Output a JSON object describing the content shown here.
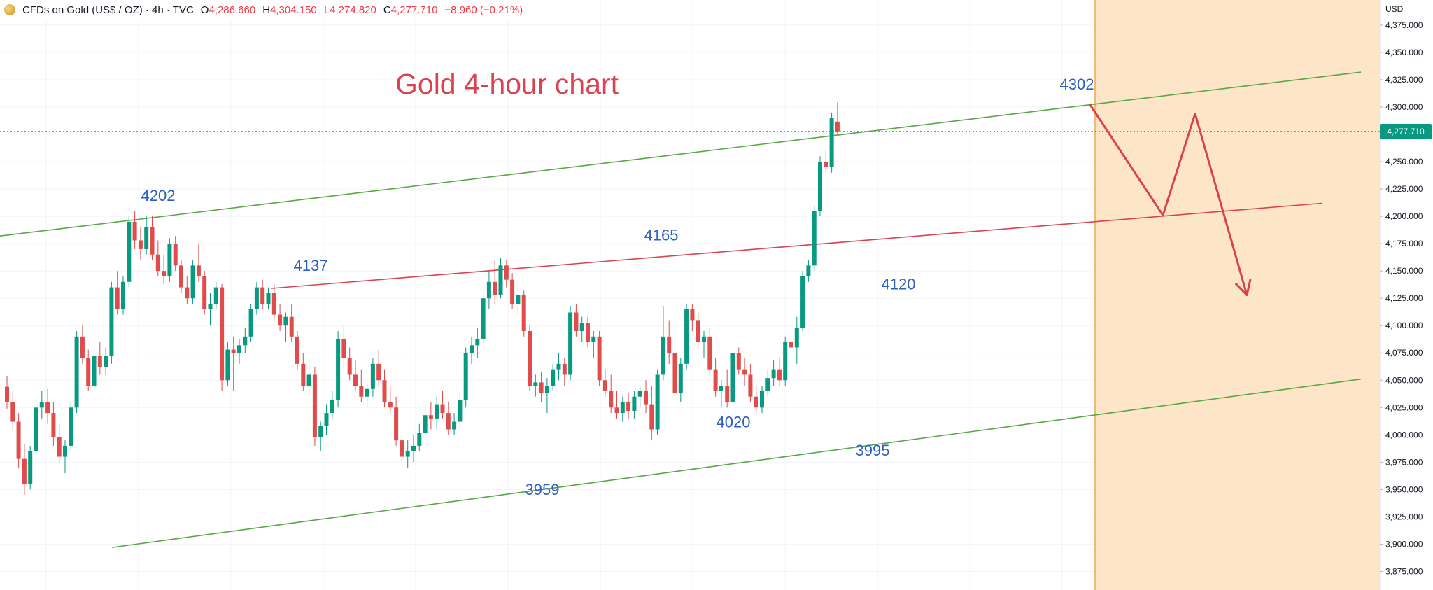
{
  "legend": {
    "symbol": "CFDs on Gold (US$ / OZ) · 4h · TVC",
    "open_label": "O",
    "open": "4,286.660",
    "high_label": "H",
    "high": "4,304.150",
    "low_label": "L",
    "low": "4,274.820",
    "close_label": "C",
    "close": "4,277.710",
    "change": "−8.960 (−0.21%)"
  },
  "currency": "USD",
  "current_price_label": "4,277.710",
  "colors": {
    "up": "#089981",
    "down": "#e04b4b",
    "green_channel": "#56a845",
    "red_line": "#d9434f",
    "annotation": "#2d5fc0",
    "title": "#d9434f",
    "projection_zone": "#fde5c8",
    "projection_border": "#f1a944"
  },
  "chart_data": {
    "type": "candlestick",
    "title": "Gold 4-hour chart",
    "ylabel": "USD",
    "ylim": [
      3858,
      4398
    ],
    "last_price": 4277.71,
    "y_ticks": [
      3875,
      3900,
      3925,
      3950,
      3975,
      4000,
      4025,
      4050,
      4075,
      4100,
      4125,
      4150,
      4175,
      4200,
      4225,
      4250,
      4275,
      4300,
      4325,
      4350,
      4375
    ],
    "y_tick_labels": [
      "3,875.000",
      "3,900.000",
      "3,925.000",
      "3,950.000",
      "3,975.000",
      "4,000.000",
      "4,025.000",
      "4,050.000",
      "4,075.000",
      "4,100.000",
      "4,125.000",
      "4,150.000",
      "4,175.000",
      "4,200.000",
      "4,225.000",
      "4,250.000",
      "4,275.000",
      "4,300.000",
      "4,325.000",
      "4,350.000",
      "4,375.000"
    ],
    "ohlc": [
      [
        4044,
        4054,
        4024,
        4030
      ],
      [
        4030,
        4040,
        4005,
        4012
      ],
      [
        4012,
        4020,
        3970,
        3978
      ],
      [
        3978,
        3992,
        3945,
        3955
      ],
      [
        3955,
        3990,
        3950,
        3985
      ],
      [
        3985,
        4035,
        3980,
        4025
      ],
      [
        4025,
        4040,
        4015,
        4030
      ],
      [
        4030,
        4042,
        4010,
        4020
      ],
      [
        4020,
        4030,
        3990,
        3998
      ],
      [
        3998,
        4010,
        3975,
        3980
      ],
      [
        3980,
        3995,
        3965,
        3990
      ],
      [
        3990,
        4030,
        3985,
        4025
      ],
      [
        4025,
        4095,
        4020,
        4090
      ],
      [
        4090,
        4100,
        4065,
        4070
      ],
      [
        4070,
        4078,
        4040,
        4045
      ],
      [
        4045,
        4078,
        4038,
        4072
      ],
      [
        4072,
        4085,
        4055,
        4062
      ],
      [
        4062,
        4080,
        4055,
        4072
      ],
      [
        4072,
        4140,
        4065,
        4135
      ],
      [
        4135,
        4150,
        4110,
        4115
      ],
      [
        4115,
        4145,
        4110,
        4140
      ],
      [
        4140,
        4200,
        4135,
        4195
      ],
      [
        4195,
        4205,
        4170,
        4178
      ],
      [
        4178,
        4190,
        4160,
        4170
      ],
      [
        4170,
        4200,
        4165,
        4190
      ],
      [
        4190,
        4200,
        4160,
        4165
      ],
      [
        4165,
        4178,
        4145,
        4150
      ],
      [
        4150,
        4165,
        4138,
        4145
      ],
      [
        4145,
        4180,
        4140,
        4175
      ],
      [
        4175,
        4182,
        4150,
        4155
      ],
      [
        4155,
        4160,
        4130,
        4135
      ],
      [
        4135,
        4145,
        4120,
        4125
      ],
      [
        4125,
        4160,
        4120,
        4155
      ],
      [
        4155,
        4175,
        4140,
        4145
      ],
      [
        4145,
        4150,
        4110,
        4115
      ],
      [
        4115,
        4130,
        4100,
        4120
      ],
      [
        4120,
        4140,
        4115,
        4135
      ],
      [
        4135,
        4138,
        4040,
        4050
      ],
      [
        4050,
        4085,
        4045,
        4078
      ],
      [
        4078,
        4090,
        4040,
        4075
      ],
      [
        4075,
        4088,
        4065,
        4082
      ],
      [
        4082,
        4098,
        4075,
        4090
      ],
      [
        4090,
        4120,
        4085,
        4115
      ],
      [
        4115,
        4140,
        4110,
        4135
      ],
      [
        4135,
        4142,
        4115,
        4120
      ],
      [
        4120,
        4135,
        4115,
        4130
      ],
      [
        4130,
        4138,
        4105,
        4110
      ],
      [
        4110,
        4120,
        4095,
        4100
      ],
      [
        4100,
        4112,
        4085,
        4108
      ],
      [
        4108,
        4120,
        4085,
        4090
      ],
      [
        4090,
        4095,
        4060,
        4065
      ],
      [
        4065,
        4075,
        4040,
        4045
      ],
      [
        4045,
        4070,
        4040,
        4055
      ],
      [
        4055,
        4062,
        3990,
        3998
      ],
      [
        3998,
        4012,
        3985,
        4008
      ],
      [
        4008,
        4028,
        4000,
        4020
      ],
      [
        4020,
        4040,
        4015,
        4032
      ],
      [
        4032,
        4095,
        4025,
        4088
      ],
      [
        4088,
        4100,
        4060,
        4070
      ],
      [
        4070,
        4080,
        4050,
        4055
      ],
      [
        4055,
        4068,
        4040,
        4045
      ],
      [
        4045,
        4060,
        4030,
        4035
      ],
      [
        4035,
        4048,
        4025,
        4042
      ],
      [
        4042,
        4070,
        4035,
        4065
      ],
      [
        4065,
        4078,
        4045,
        4050
      ],
      [
        4050,
        4060,
        4025,
        4030
      ],
      [
        4030,
        4045,
        4020,
        4025
      ],
      [
        4025,
        4035,
        3990,
        3995
      ],
      [
        3995,
        4000,
        3975,
        3980
      ],
      [
        3980,
        3995,
        3970,
        3985
      ],
      [
        3985,
        4000,
        3975,
        3990
      ],
      [
        3990,
        4010,
        3985,
        4002
      ],
      [
        4002,
        4025,
        3995,
        4018
      ],
      [
        4018,
        4030,
        4005,
        4015
      ],
      [
        4015,
        4035,
        4005,
        4028
      ],
      [
        4028,
        4040,
        4015,
        4020
      ],
      [
        4020,
        4030,
        4000,
        4005
      ],
      [
        4005,
        4020,
        4000,
        4012
      ],
      [
        4012,
        4038,
        4005,
        4032
      ],
      [
        4032,
        4080,
        4025,
        4075
      ],
      [
        4075,
        4090,
        4065,
        4082
      ],
      [
        4082,
        4098,
        4070,
        4088
      ],
      [
        4088,
        4130,
        4082,
        4125
      ],
      [
        4125,
        4150,
        4115,
        4140
      ],
      [
        4140,
        4160,
        4120,
        4128
      ],
      [
        4128,
        4162,
        4125,
        4155
      ],
      [
        4155,
        4160,
        4135,
        4142
      ],
      [
        4142,
        4148,
        4115,
        4120
      ],
      [
        4120,
        4140,
        4110,
        4128
      ],
      [
        4128,
        4132,
        4090,
        4095
      ],
      [
        4095,
        4100,
        4040,
        4045
      ],
      [
        4045,
        4055,
        4035,
        4048
      ],
      [
        4048,
        4058,
        4030,
        4038
      ],
      [
        4038,
        4052,
        4020,
        4045
      ],
      [
        4045,
        4065,
        4040,
        4060
      ],
      [
        4060,
        4075,
        4050,
        4065
      ],
      [
        4065,
        4070,
        4045,
        4055
      ],
      [
        4055,
        4118,
        4050,
        4112
      ],
      [
        4112,
        4120,
        4090,
        4095
      ],
      [
        4095,
        4108,
        4085,
        4102
      ],
      [
        4102,
        4108,
        4080,
        4085
      ],
      [
        4085,
        4095,
        4070,
        4090
      ],
      [
        4090,
        4095,
        4045,
        4050
      ],
      [
        4050,
        4060,
        4035,
        4040
      ],
      [
        4040,
        4055,
        4020,
        4025
      ],
      [
        4025,
        4040,
        4015,
        4020
      ],
      [
        4020,
        4035,
        4012,
        4030
      ],
      [
        4030,
        4038,
        4015,
        4022
      ],
      [
        4022,
        4040,
        4015,
        4035
      ],
      [
        4035,
        4045,
        4025,
        4040
      ],
      [
        4040,
        4050,
        4020,
        4028
      ],
      [
        4028,
        4045,
        3995,
        4005
      ],
      [
        4005,
        4060,
        4000,
        4055
      ],
      [
        4055,
        4118,
        4050,
        4090
      ],
      [
        4090,
        4105,
        4065,
        4075
      ],
      [
        4075,
        4090,
        4035,
        4038
      ],
      [
        4038,
        4070,
        4030,
        4065
      ],
      [
        4065,
        4120,
        4060,
        4115
      ],
      [
        4115,
        4120,
        4095,
        4105
      ],
      [
        4105,
        4112,
        4080,
        4085
      ],
      [
        4085,
        4095,
        4070,
        4090
      ],
      [
        4090,
        4098,
        4055,
        4060
      ],
      [
        4060,
        4070,
        4035,
        4040
      ],
      [
        4040,
        4050,
        4025,
        4045
      ],
      [
        4045,
        4060,
        4025,
        4030
      ],
      [
        4030,
        4080,
        4025,
        4075
      ],
      [
        4075,
        4080,
        4055,
        4060
      ],
      [
        4060,
        4070,
        4045,
        4055
      ],
      [
        4055,
        4065,
        4030,
        4035
      ],
      [
        4035,
        4045,
        4020,
        4025
      ],
      [
        4025,
        4045,
        4020,
        4040
      ],
      [
        4040,
        4060,
        4035,
        4052
      ],
      [
        4052,
        4068,
        4045,
        4060
      ],
      [
        4060,
        4070,
        4045,
        4050
      ],
      [
        4050,
        4090,
        4045,
        4085
      ],
      [
        4085,
        4102,
        4070,
        4080
      ],
      [
        4080,
        4108,
        4065,
        4098
      ],
      [
        4098,
        4150,
        4095,
        4145
      ],
      [
        4145,
        4160,
        4140,
        4155
      ],
      [
        4155,
        4210,
        4150,
        4205
      ],
      [
        4205,
        4255,
        4200,
        4250
      ],
      [
        4250,
        4260,
        4240,
        4245
      ],
      [
        4245,
        4295,
        4240,
        4290
      ],
      [
        4286.66,
        4304.15,
        4274.82,
        4277.71
      ]
    ],
    "lines": [
      {
        "name": "green-upper",
        "x": [
          0,
          1945
        ],
        "y": [
          4182,
          4332
        ]
      },
      {
        "name": "green-lower",
        "x": [
          160,
          1945
        ],
        "y": [
          3897,
          4051
        ]
      },
      {
        "name": "red-mid",
        "x": [
          387,
          1890
        ],
        "y": [
          4134,
          4212
        ]
      }
    ],
    "projection": {
      "x": [
        1558,
        1662,
        1708,
        1782
      ],
      "y": [
        4302,
        4201,
        4294,
        4128
      ]
    },
    "annotations": [
      {
        "text": "4202",
        "x": 226,
        "y": 4214
      },
      {
        "text": "4137",
        "x": 444,
        "y": 4150
      },
      {
        "text": "4165",
        "x": 945,
        "y": 4178
      },
      {
        "text": "3959",
        "x": 775,
        "y": 3945
      },
      {
        "text": "4020",
        "x": 1048,
        "y": 4007
      },
      {
        "text": "4120",
        "x": 1284,
        "y": 4133
      },
      {
        "text": "3995",
        "x": 1247,
        "y": 3981
      },
      {
        "text": "4302",
        "x": 1539,
        "y": 4316
      }
    ]
  }
}
